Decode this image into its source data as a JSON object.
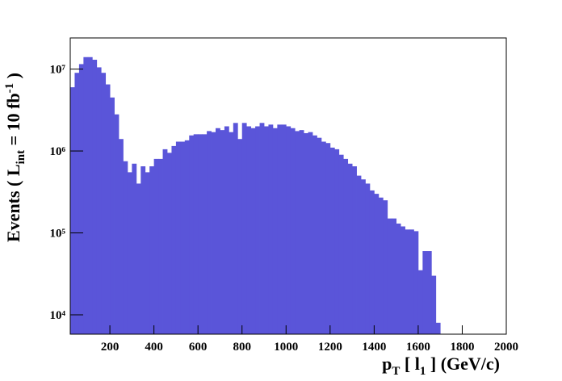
{
  "chart_data": {
    "type": "histogram",
    "xlabel": [
      "p",
      "T",
      " [ l",
      "1",
      " ] (GeV/c)"
    ],
    "ylabel": [
      "Events  ( L",
      "int",
      " = 10 fb",
      "-1",
      " )"
    ],
    "color": "#5a55d9",
    "log_y": true,
    "bins": [
      20,
      40,
      60,
      80,
      100,
      120,
      140,
      160,
      180,
      200,
      220,
      240,
      260,
      280,
      300,
      320,
      340,
      360,
      380,
      400,
      420,
      440,
      460,
      480,
      500,
      520,
      540,
      560,
      580,
      600,
      620,
      640,
      660,
      680,
      700,
      720,
      740,
      760,
      780,
      800,
      820,
      840,
      860,
      880,
      900,
      920,
      940,
      960,
      980,
      1000,
      1020,
      1040,
      1060,
      1080,
      1100,
      1120,
      1140,
      1160,
      1180,
      1200,
      1220,
      1240,
      1260,
      1280,
      1300,
      1320,
      1340,
      1360,
      1380,
      1400,
      1420,
      1440,
      1460,
      1480,
      1500,
      1520,
      1540,
      1560,
      1580,
      1600,
      1620,
      1640,
      1660,
      1680,
      1700
    ],
    "values": [
      6000000,
      9000000,
      11500000,
      14000000,
      14000000,
      13000000,
      10500000,
      9000000,
      6500000,
      4500000,
      2800000,
      1400000,
      750000,
      550000,
      700000,
      400000,
      650000,
      550000,
      650000,
      800000,
      800000,
      1050000,
      950000,
      1150000,
      1300000,
      1300000,
      1350000,
      1550000,
      1600000,
      1600000,
      1600000,
      1750000,
      1700000,
      1900000,
      1800000,
      2000000,
      1700000,
      2200000,
      1400000,
      2200000,
      2000000,
      1900000,
      2000000,
      2200000,
      2000000,
      2100000,
      1900000,
      2100000,
      2100000,
      2000000,
      1900000,
      1750000,
      1800000,
      1650000,
      1700000,
      1550000,
      1450000,
      1300000,
      1250000,
      1100000,
      1050000,
      900000,
      800000,
      700000,
      650000,
      500000,
      450000,
      400000,
      330000,
      300000,
      270000,
      250000,
      150000,
      150000,
      130000,
      120000,
      110000,
      110000,
      105000,
      35000,
      60000,
      60000,
      30000,
      8000
    ],
    "xlim": [
      20,
      2000
    ],
    "xticks": [
      200,
      400,
      600,
      800,
      1000,
      1200,
      1400,
      1600,
      1800,
      2000
    ],
    "ylim": [
      5800,
      24000000
    ],
    "yticks": [
      {
        "value": 10000,
        "label": "10⁴"
      },
      {
        "value": 100000,
        "label": "10⁵"
      },
      {
        "value": 1000000,
        "label": "10⁶"
      },
      {
        "value": 10000000,
        "label": "10⁷"
      }
    ]
  }
}
